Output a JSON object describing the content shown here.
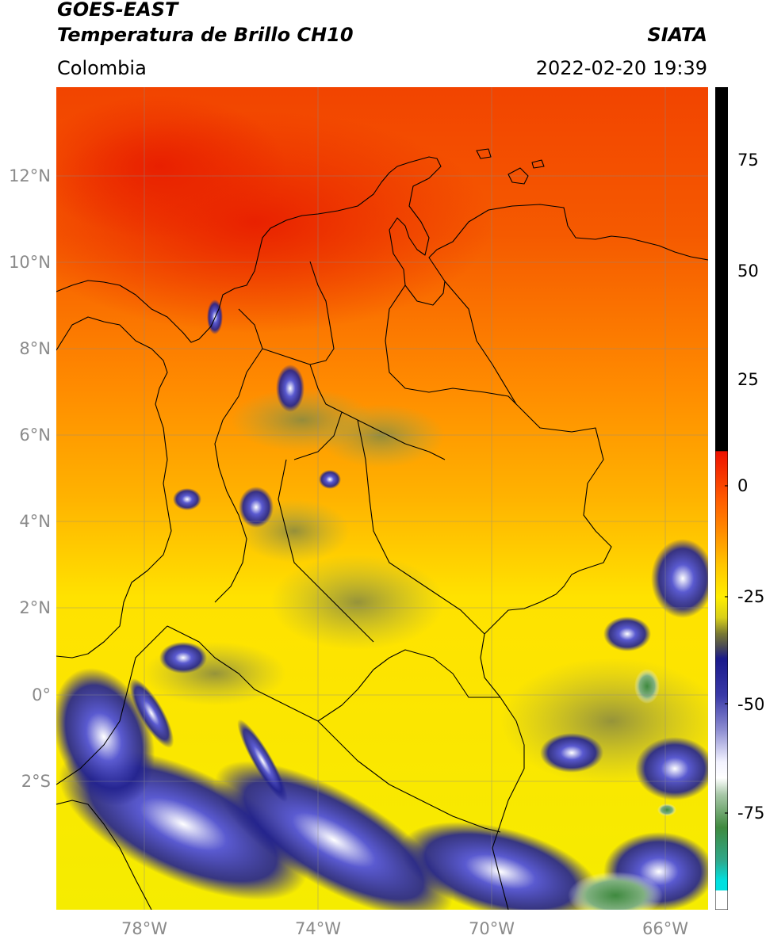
{
  "header": {
    "satellite": "GOES-EAST",
    "product": "Temperatura de Brillo CH10",
    "source": "SIATA",
    "region": "Colombia",
    "datetime": "2022-02-20 19:39"
  },
  "map": {
    "lat_labels": [
      "12°N",
      "10°N",
      "8°N",
      "6°N",
      "4°N",
      "2°N",
      "0°",
      "2°S"
    ],
    "lon_labels": [
      "78°W",
      "74°W",
      "70°W",
      "66°W"
    ],
    "gridlines": true
  },
  "colorbar": {
    "ticks": [
      "75",
      "50",
      "25",
      "0",
      "-25",
      "-50",
      "-75"
    ],
    "tick_values": [
      75,
      50,
      25,
      0,
      -25,
      -50,
      -75
    ],
    "range": [
      -95,
      90
    ],
    "colors": {
      "black": "#000000",
      "red": "#ee1100",
      "orange": "#ff7a00",
      "yellow": "#ffee00",
      "olive": "#777733",
      "navy": "#1a1a8c",
      "white": "#ffffff",
      "green": "#3f8a3f",
      "cyan": "#00e0e0"
    }
  }
}
